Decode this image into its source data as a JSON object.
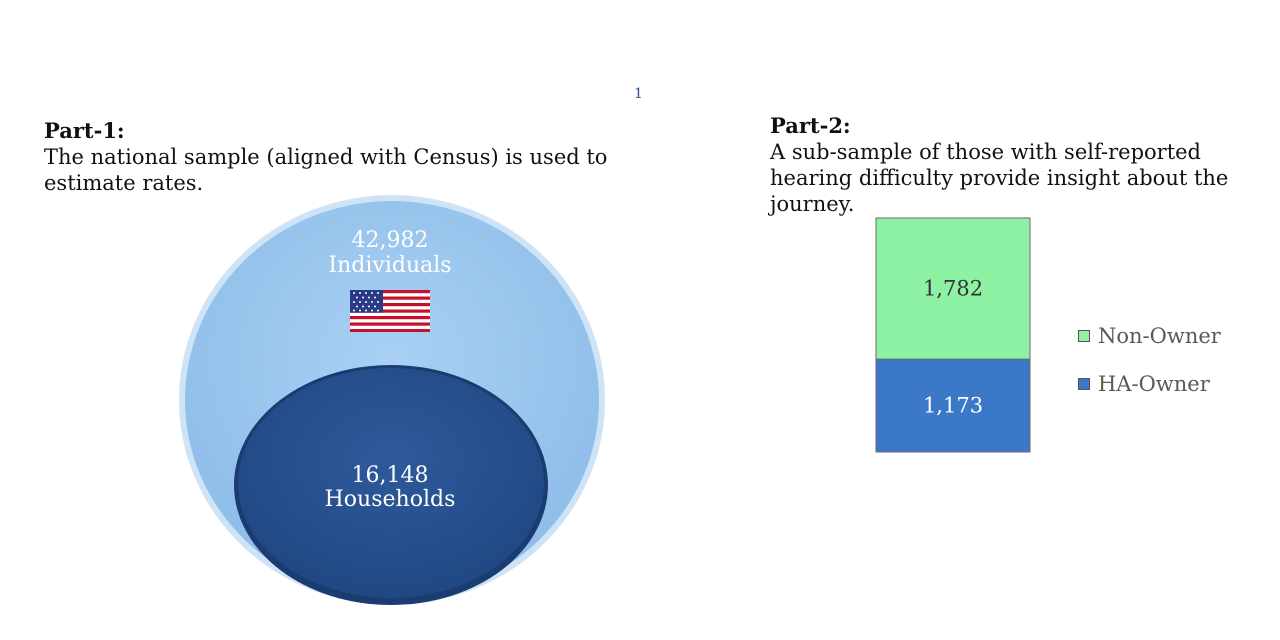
{
  "page_number": "1",
  "part1": {
    "title": "Part-1:",
    "text": "The national sample (aligned with Census) is used to estimate rates."
  },
  "part2": {
    "title": "Part-2:",
    "text": "A sub-sample of those with self-reported hearing difficulty provide insight about the journey."
  },
  "chart_data": [
    {
      "type": "nested-circles",
      "outer": {
        "value": "42,982",
        "label": "Individuals",
        "color": "#9dc8ef",
        "icon": "us-flag-icon"
      },
      "inner": {
        "value": "16,148",
        "label": "Households",
        "color": "#2b5594"
      }
    },
    {
      "type": "bar",
      "stacked": true,
      "categories": [
        ""
      ],
      "series": [
        {
          "name": "HA-Owner",
          "values": [
            1173
          ],
          "label": "1,173",
          "color": "#3c78c8"
        },
        {
          "name": "Non-Owner",
          "values": [
            1782
          ],
          "label": "1,782",
          "color": "#8ef2a4"
        }
      ],
      "legend_position": "right"
    }
  ]
}
